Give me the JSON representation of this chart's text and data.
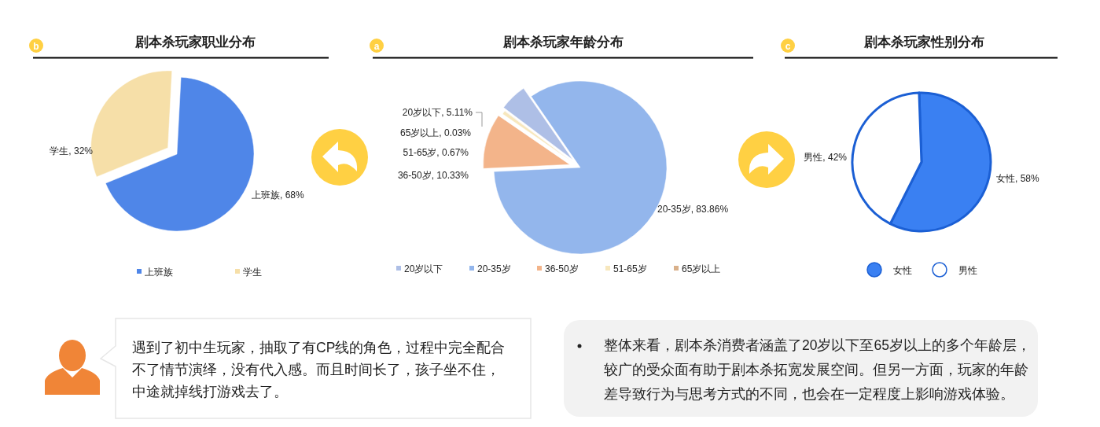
{
  "chart_data": [
    {
      "type": "pie",
      "title": "剧本杀玩家职业分布",
      "annotations": [
        "b"
      ],
      "categories": [
        "上班族",
        "学生"
      ],
      "values": [
        68,
        32
      ],
      "value_labels": [
        ", 68%",
        ", 32%"
      ],
      "colors": [
        "#4f86e8",
        "#f6dfa8"
      ],
      "legend": "bottom",
      "marker": "square"
    },
    {
      "type": "pie",
      "title": "剧本杀玩家年龄分布",
      "annotations": [
        "a"
      ],
      "categories": [
        "20岁以下",
        "20-35岁",
        "36-50岁",
        "51-65岁",
        "65岁以上"
      ],
      "values": [
        5.11,
        83.86,
        10.33,
        0.67,
        0.03
      ],
      "value_labels": [
        ", 5.11%",
        ", 83.86%",
        ", 10.33%",
        ", 0.67%",
        ", 0.03%"
      ],
      "colors": [
        "#aebfe6",
        "#93b6ec",
        "#f3b48a",
        "#f7e7bd",
        "#d9b08a"
      ],
      "legend": "bottom",
      "marker": "square"
    },
    {
      "type": "pie",
      "title": "剧本杀玩家性别分布",
      "annotations": [
        "c"
      ],
      "categories": [
        "女性",
        "男性"
      ],
      "values": [
        58,
        42
      ],
      "value_labels": [
        ", 58%",
        ", 42%"
      ],
      "colors": [
        "#3a80f2",
        "#ffffff"
      ],
      "legend": "bottom",
      "marker": "circle"
    },
    {
      "type": "other",
      "annotations": [
        "遇到了初中生玩家，抽取了有CP线的角色，过程中完全配合不了情节演绎，没有代入感。而且时间长了，孩子坐不住，中途就掉线打游戏去了。"
      ]
    },
    {
      "type": "other",
      "annotations": [
        "整体来看，剧本杀消费者涵盖了20岁以下至65岁以上的多个年龄层，较广的受众面有助于剧本杀拓宽发展空间。但另一方面，玩家的年龄差导致行为与思考方式的不同，也会在一定程度上影响游戏体验。"
      ]
    }
  ]
}
